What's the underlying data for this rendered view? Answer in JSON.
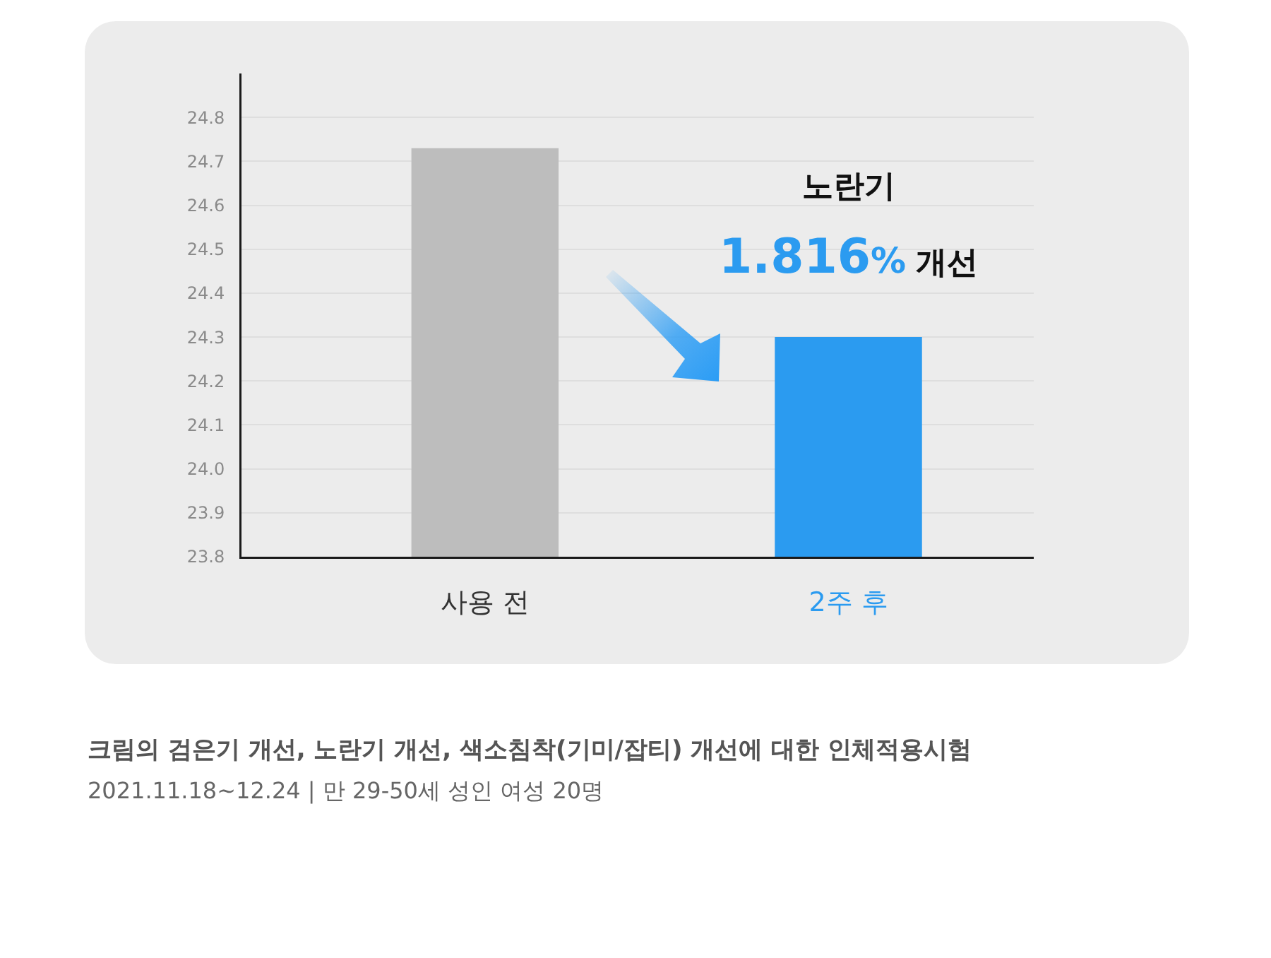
{
  "chart_data": {
    "type": "bar",
    "title": "크림의 검은기 개선, 노란기 개선, 색소침착(기미/잡티) 개선에 대한 인체적용시험",
    "subtitle": "2021.11.18~12.24 | 만 29-50세 성인 여성 20명",
    "categories": [
      "사용 전",
      "2주 후"
    ],
    "values": [
      24.73,
      24.3
    ],
    "colors": [
      "#bdbdbd",
      "#2b9bf0"
    ],
    "ylim": [
      23.8,
      24.9
    ],
    "yticks": [
      23.8,
      23.9,
      {
        "value": 24,
        "label": "24.0"
      },
      24.1,
      24.2,
      24.3,
      24.4,
      24.5,
      24.6,
      24.7,
      24.8
    ],
    "grid": "y",
    "annotations": [
      "노란기",
      "1.816% 개선"
    ]
  }
}
